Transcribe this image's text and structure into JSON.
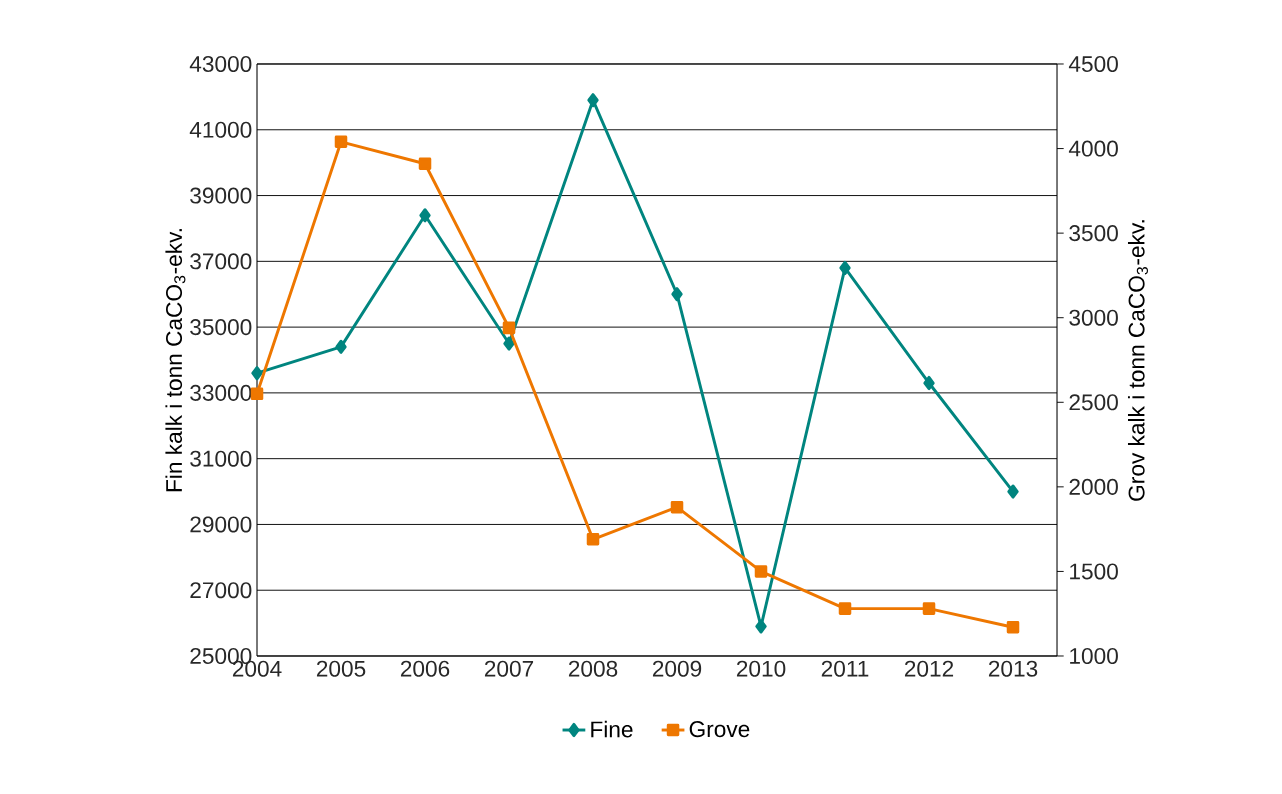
{
  "chart_data": {
    "type": "line",
    "categories": [
      "2004",
      "2005",
      "2006",
      "2007",
      "2008",
      "2009",
      "2010",
      "2011",
      "2012",
      "2013"
    ],
    "ylabel": "Fin kalk i tonn CaCO$_{3}$-ekv.",
    "y2label": "Grov kalk i tonn CaCO$_{3}$-ekv.",
    "ylim": [
      25000,
      43000
    ],
    "yticks": [
      25000,
      27000,
      29000,
      31000,
      33000,
      35000,
      37000,
      39000,
      41000,
      43000
    ],
    "y2lim": [
      1000,
      4500
    ],
    "y2ticks": [
      1000,
      1500,
      2000,
      2500,
      3000,
      3500,
      4000,
      4500
    ],
    "grid": "y",
    "legend": "bottom",
    "line_style": "solid",
    "series": [
      {
        "name": "Fine",
        "color": "#00857f",
        "marker": "diamond",
        "values": [
          33600,
          34400,
          38400,
          34500,
          41900,
          36000,
          25900,
          36800,
          33300,
          30000
        ]
      },
      {
        "name": "Grove",
        "color": "#ee7700",
        "marker": "square",
        "axis": "y2",
        "values": [
          2550,
          4040,
          3910,
          2940,
          1690,
          1880,
          1500,
          1280,
          1280,
          1170
        ]
      }
    ]
  }
}
